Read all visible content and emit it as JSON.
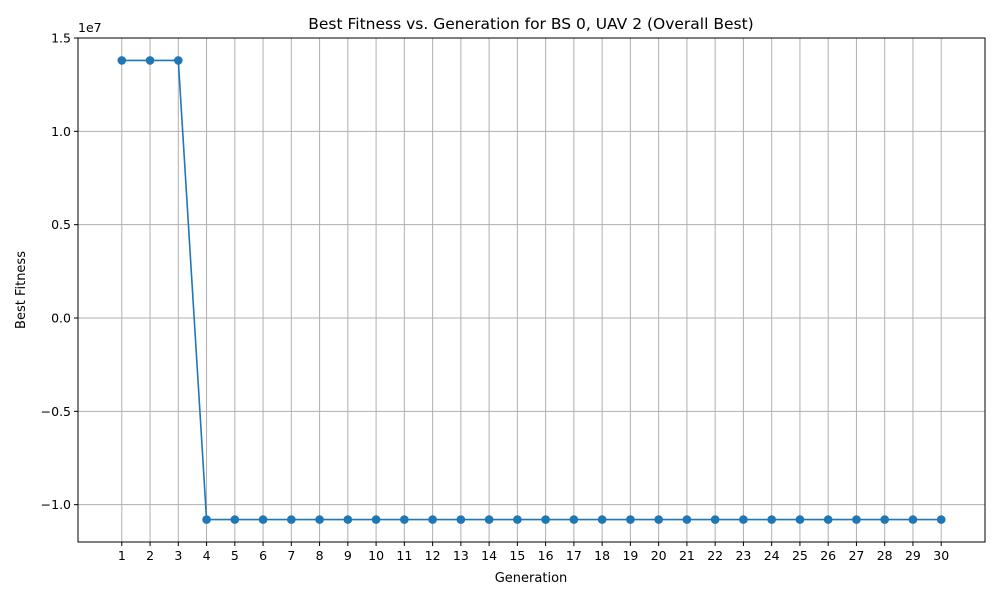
{
  "chart_data": {
    "type": "line",
    "title": "Best Fitness vs. Generation for BS 0, UAV 2 (Overall Best)",
    "xlabel": "Generation",
    "ylabel": "Best Fitness",
    "y_offset_label": "1e7",
    "grid": true,
    "xlim": [
      -0.55,
      31.55
    ],
    "ylim": [
      -12000000,
      15000000
    ],
    "x": [
      1,
      2,
      3,
      4,
      5,
      6,
      7,
      8,
      9,
      10,
      11,
      12,
      13,
      14,
      15,
      16,
      17,
      18,
      19,
      20,
      21,
      22,
      23,
      24,
      25,
      26,
      27,
      28,
      29,
      30
    ],
    "x_ticks": [
      1,
      2,
      3,
      4,
      5,
      6,
      7,
      8,
      9,
      10,
      11,
      12,
      13,
      14,
      15,
      16,
      17,
      18,
      19,
      20,
      21,
      22,
      23,
      24,
      25,
      26,
      27,
      28,
      29,
      30
    ],
    "y_ticks": [
      {
        "value": -10000000,
        "label": "−1.0"
      },
      {
        "value": -5000000,
        "label": "−0.5"
      },
      {
        "value": 0,
        "label": "0.0"
      },
      {
        "value": 5000000,
        "label": "0.5"
      },
      {
        "value": 10000000,
        "label": "1.0"
      },
      {
        "value": 15000000,
        "label": "1.5"
      }
    ],
    "series": [
      {
        "color": "#1f77b4",
        "marker": "circle",
        "values": [
          13800000,
          13800000,
          13800000,
          -10800000,
          -10800000,
          -10800000,
          -10800000,
          -10800000,
          -10800000,
          -10800000,
          -10800000,
          -10800000,
          -10800000,
          -10800000,
          -10800000,
          -10800000,
          -10800000,
          -10800000,
          -10800000,
          -10800000,
          -10800000,
          -10800000,
          -10800000,
          -10800000,
          -10800000,
          -10800000,
          -10800000,
          -10800000,
          -10800000,
          -10800000
        ]
      }
    ]
  }
}
